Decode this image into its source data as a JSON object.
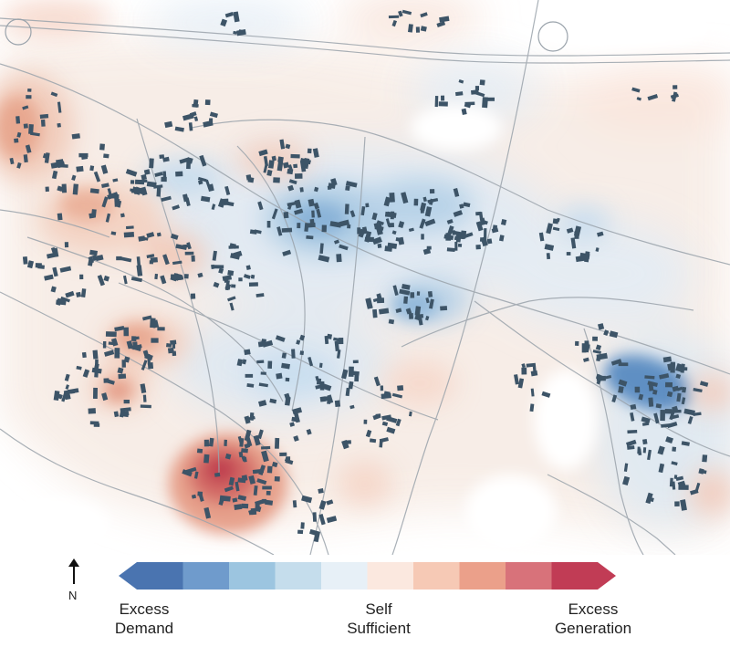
{
  "map": {
    "description_free": true,
    "colors": {
      "demand_strong": "#4a78b0",
      "demand_mid": "#8db8dc",
      "demand_light": "#d6e6f2",
      "neutral": "#f7ede7",
      "generation_light": "#f2c3b0",
      "generation_mid": "#e08a74",
      "generation_strong": "#c03d4c",
      "building": "#3d5467",
      "road": "#9aa3ab"
    }
  },
  "legend": {
    "north_label": "N",
    "colorbar_colors": [
      "#4a74b0",
      "#6f9bcc",
      "#9cc5e0",
      "#c5ddec",
      "#e7f0f7",
      "#fbe8df",
      "#f6c9b5",
      "#eba08a",
      "#d8727a",
      "#c13c55"
    ],
    "excess_demand_line1": "Excess",
    "excess_demand_line2": "Demand",
    "self_sufficient_line1": "Self",
    "self_sufficient_line2": "Sufficient",
    "excess_generation_line1": "Excess",
    "excess_generation_line2": "Generation"
  }
}
